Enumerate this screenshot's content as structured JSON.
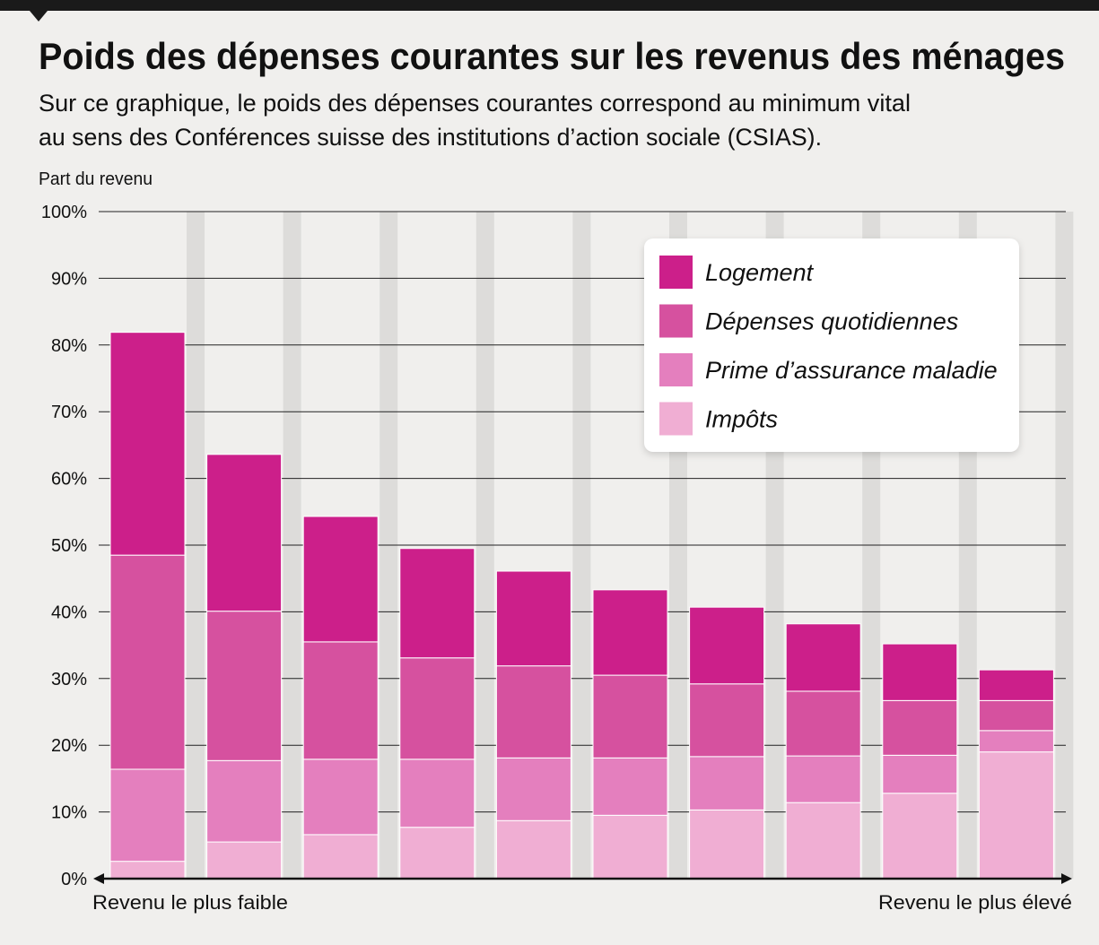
{
  "chart_data": {
    "type": "bar",
    "stacked": true,
    "title": "Poids des dépenses courantes sur les revenus des ménages",
    "subtitle": [
      "Sur ce graphique, le poids des dépenses courantes correspond au minimum vital",
      "au sens des Conférences suisse des institutions d’action sociale (CSIAS)."
    ],
    "ylabel": "Part du revenu",
    "x_left_label": "Revenu le plus faible",
    "x_right_label": "Revenu le plus élevé",
    "ylim": [
      0,
      100
    ],
    "yticks": [
      "0%",
      "10%",
      "20%",
      "30%",
      "40%",
      "50%",
      "60%",
      "70%",
      "80%",
      "90%",
      "100%"
    ],
    "grid": true,
    "legend_position": "top-right",
    "categories": [
      "1",
      "2",
      "3",
      "4",
      "5",
      "6",
      "7",
      "8",
      "9",
      "10"
    ],
    "series": [
      {
        "name": "Impôts",
        "color": "#f0aed3",
        "values": [
          2.6,
          5.5,
          6.6,
          7.7,
          8.7,
          9.5,
          10.3,
          11.4,
          12.8,
          19.0
        ]
      },
      {
        "name": "Prime d’assurance maladie",
        "color": "#e47fbe",
        "values": [
          13.8,
          12.2,
          11.3,
          10.2,
          9.4,
          8.6,
          8.0,
          7.0,
          5.7,
          3.2
        ]
      },
      {
        "name": "Dépenses quotidiennes",
        "color": "#d6519f",
        "values": [
          32.1,
          22.4,
          17.6,
          15.2,
          13.8,
          12.4,
          10.9,
          9.7,
          8.2,
          4.5
        ]
      },
      {
        "name": "Logement",
        "color": "#cc1f8a",
        "values": [
          33.4,
          23.5,
          18.8,
          16.4,
          14.2,
          12.8,
          11.5,
          10.1,
          8.5,
          4.6
        ]
      }
    ],
    "legend_order": [
      "Logement",
      "Dépenses quotidiennes",
      "Prime d’assurance maladie",
      "Impôts"
    ]
  }
}
